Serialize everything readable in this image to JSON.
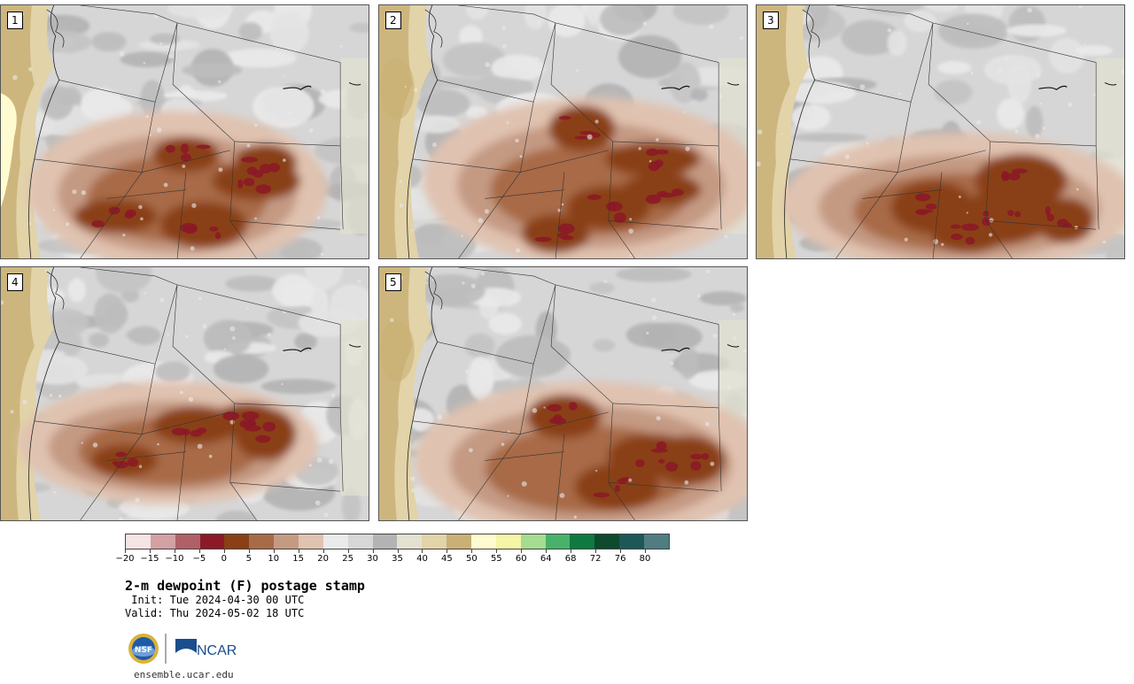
{
  "panels": [
    {
      "number": "1",
      "variant": 1
    },
    {
      "number": "2",
      "variant": 2
    },
    {
      "number": "3",
      "variant": 3
    },
    {
      "number": "4",
      "variant": 4
    },
    {
      "number": "5",
      "variant": 5
    }
  ],
  "legend": {
    "colors": [
      "#f5e4e4",
      "#d3a0a3",
      "#b06066",
      "#8b1a26",
      "#8a3f14",
      "#a86b47",
      "#c49a83",
      "#e0c2b0",
      "#eaeaea",
      "#d7d7d7",
      "#b3b3b3",
      "#e2e1d2",
      "#e2d3a8",
      "#c9b075",
      "#fffbd0",
      "#f5f5a6",
      "#a5dc90",
      "#48b26a",
      "#0f7a40",
      "#0e4a2c",
      "#1d5757",
      "#4f7d82"
    ],
    "labels": [
      "−20",
      "−15",
      "−10",
      "−5",
      "0",
      "5",
      "10",
      "15",
      "20",
      "25",
      "30",
      "35",
      "40",
      "45",
      "50",
      "55",
      "60",
      "64",
      "68",
      "72",
      "76",
      "80"
    ]
  },
  "title": "2-m dewpoint (F) postage stamp",
  "init": " Init: Tue 2024-04-30 00 UTC",
  "valid": "Valid: Thu 2024-05-02 18 UTC",
  "logo": {
    "nsf": "NSF",
    "ncar": "NCAR"
  },
  "site": "ensemble.ucar.edu"
}
